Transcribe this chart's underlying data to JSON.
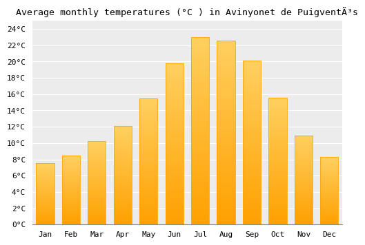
{
  "title": "Average monthly temperatures (°C ) in Avinyonet de PuigventÃ³s",
  "months": [
    "Jan",
    "Feb",
    "Mar",
    "Apr",
    "May",
    "Jun",
    "Jul",
    "Aug",
    "Sep",
    "Oct",
    "Nov",
    "Dec"
  ],
  "temperatures": [
    7.5,
    8.5,
    10.2,
    12.1,
    15.5,
    19.8,
    23.0,
    22.6,
    20.1,
    15.6,
    10.9,
    8.3
  ],
  "bar_color_bottom": "#FFA000",
  "bar_color_top": "#FFD060",
  "bar_edge_color": "#FFA500",
  "plot_bg_color": "#ECECEC",
  "fig_bg_color": "#FFFFFF",
  "grid_color": "#FFFFFF",
  "ylim": [
    0,
    25
  ],
  "ytick_step": 2,
  "title_fontsize": 9.5,
  "tick_fontsize": 8,
  "font_family": "monospace"
}
